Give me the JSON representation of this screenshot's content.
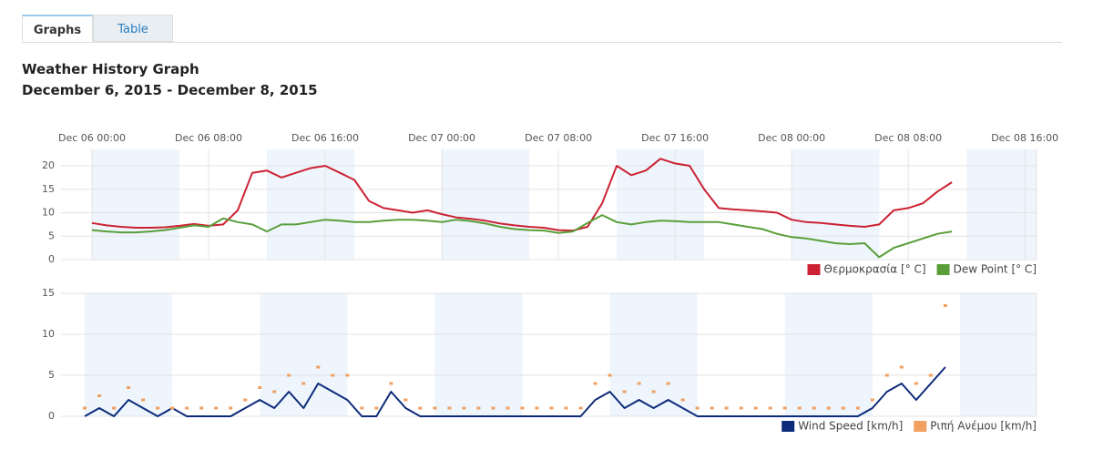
{
  "tabs": [
    "Graphs",
    "Table"
  ],
  "heading": {
    "title": "Weather History Graph",
    "subtitle": "December 6, 2015 - December 8, 2015"
  },
  "chart_data": [
    {
      "type": "line",
      "x": [
        "Dec 06 00:00",
        "Dec 06 01:00",
        "Dec 06 02:00",
        "Dec 06 03:00",
        "Dec 06 04:00",
        "Dec 06 05:00",
        "Dec 06 06:00",
        "Dec 06 07:00",
        "Dec 06 08:00",
        "Dec 06 09:00",
        "Dec 06 10:00",
        "Dec 06 11:00",
        "Dec 06 12:00",
        "Dec 06 13:00",
        "Dec 06 14:00",
        "Dec 06 15:00",
        "Dec 06 16:00",
        "Dec 06 17:00",
        "Dec 06 18:00",
        "Dec 06 19:00",
        "Dec 06 20:00",
        "Dec 06 21:00",
        "Dec 06 22:00",
        "Dec 06 23:00",
        "Dec 07 00:00",
        "Dec 07 01:00",
        "Dec 07 02:00",
        "Dec 07 03:00",
        "Dec 07 04:00",
        "Dec 07 05:00",
        "Dec 07 06:00",
        "Dec 07 07:00",
        "Dec 07 08:00",
        "Dec 07 09:00",
        "Dec 07 10:00",
        "Dec 07 11:00",
        "Dec 07 12:00",
        "Dec 07 13:00",
        "Dec 07 14:00",
        "Dec 07 15:00",
        "Dec 07 16:00",
        "Dec 07 17:00",
        "Dec 07 18:00",
        "Dec 07 19:00",
        "Dec 07 20:00",
        "Dec 07 21:00",
        "Dec 07 22:00",
        "Dec 07 23:00",
        "Dec 08 00:00",
        "Dec 08 01:00",
        "Dec 08 02:00",
        "Dec 08 03:00",
        "Dec 08 04:00",
        "Dec 08 05:00",
        "Dec 08 06:00",
        "Dec 08 07:00",
        "Dec 08 08:00",
        "Dec 08 09:00",
        "Dec 08 10:00",
        "Dec 08 11:00"
      ],
      "series": [
        {
          "name": "Θερμοκρασία [° C]",
          "color": "#cc2233",
          "values": [
            7.8,
            7.3,
            7,
            6.8,
            6.8,
            6.9,
            7.2,
            7.6,
            7.2,
            7.5,
            10.5,
            18.5,
            19,
            17.5,
            18.5,
            19.5,
            20,
            18.5,
            17,
            12.5,
            11,
            10.5,
            10,
            10.5,
            9.7,
            9,
            8.7,
            8.3,
            7.7,
            7.3,
            7,
            6.8,
            6.3,
            6.2,
            7,
            12,
            20,
            18,
            19,
            21.5,
            20.5,
            20,
            15,
            11,
            10.7,
            10.5,
            10.3,
            10,
            8.5,
            8,
            7.8,
            7.5,
            7.2,
            7,
            7.5,
            10.5,
            11,
            12,
            14.5,
            16.5
          ]
        },
        {
          "name": "Dew Point [° C]",
          "color": "#5a9e3a",
          "values": [
            6.3,
            6,
            5.8,
            5.8,
            6,
            6.3,
            6.8,
            7.3,
            7,
            8.8,
            8,
            7.5,
            6,
            7.5,
            7.5,
            8,
            8.5,
            8.3,
            8,
            8,
            8.3,
            8.5,
            8.5,
            8.3,
            8,
            8.5,
            8.2,
            7.7,
            7,
            6.5,
            6.3,
            6.2,
            5.7,
            6,
            7.8,
            9.5,
            8,
            7.5,
            8,
            8.3,
            8.2,
            8,
            8,
            8,
            7.5,
            7,
            6.5,
            5.5,
            4.8,
            4.5,
            4,
            3.5,
            3.3,
            3.5,
            0.5,
            2.5,
            3.5,
            4.5,
            5.5,
            6
          ]
        }
      ],
      "xlim": [
        "Dec 06 00:00",
        "Dec 08 16:48"
      ],
      "xticks": [
        "Dec 06 00:00",
        "Dec 06 08:00",
        "Dec 06 16:00",
        "Dec 07 00:00",
        "Dec 07 08:00",
        "Dec 07 16:00",
        "Dec 08 00:00",
        "Dec 08 08:00",
        "Dec 08 16:00"
      ],
      "bands": [
        [
          "Dec 06 00:00",
          "Dec 06 06:00"
        ],
        [
          "Dec 06 12:00",
          "Dec 06 18:00"
        ],
        [
          "Dec 07 00:00",
          "Dec 07 06:00"
        ],
        [
          "Dec 07 12:00",
          "Dec 07 18:00"
        ],
        [
          "Dec 08 00:00",
          "Dec 08 06:00"
        ],
        [
          "Dec 08 12:00",
          "Dec 08 16:48"
        ]
      ],
      "ylim": [
        0,
        23.5
      ],
      "yticks": [
        0,
        5,
        10,
        15,
        20
      ],
      "grid": true,
      "legend": "lower right"
    },
    {
      "type": "line",
      "x": [
        "Dec 06 00:00",
        "Dec 06 01:00",
        "Dec 06 02:00",
        "Dec 06 03:00",
        "Dec 06 04:00",
        "Dec 06 05:00",
        "Dec 06 06:00",
        "Dec 06 07:00",
        "Dec 06 08:00",
        "Dec 06 09:00",
        "Dec 06 10:00",
        "Dec 06 11:00",
        "Dec 06 12:00",
        "Dec 06 13:00",
        "Dec 06 14:00",
        "Dec 06 15:00",
        "Dec 06 16:00",
        "Dec 06 17:00",
        "Dec 06 18:00",
        "Dec 06 19:00",
        "Dec 06 20:00",
        "Dec 06 21:00",
        "Dec 06 22:00",
        "Dec 06 23:00",
        "Dec 07 00:00",
        "Dec 07 01:00",
        "Dec 07 02:00",
        "Dec 07 03:00",
        "Dec 07 04:00",
        "Dec 07 05:00",
        "Dec 07 06:00",
        "Dec 07 07:00",
        "Dec 07 08:00",
        "Dec 07 09:00",
        "Dec 07 10:00",
        "Dec 07 11:00",
        "Dec 07 12:00",
        "Dec 07 13:00",
        "Dec 07 14:00",
        "Dec 07 15:00",
        "Dec 07 16:00",
        "Dec 07 17:00",
        "Dec 07 18:00",
        "Dec 07 19:00",
        "Dec 07 20:00",
        "Dec 07 21:00",
        "Dec 07 22:00",
        "Dec 07 23:00",
        "Dec 08 00:00",
        "Dec 08 01:00",
        "Dec 08 02:00",
        "Dec 08 03:00",
        "Dec 08 04:00",
        "Dec 08 05:00",
        "Dec 08 06:00",
        "Dec 08 07:00",
        "Dec 08 08:00",
        "Dec 08 09:00",
        "Dec 08 10:00",
        "Dec 08 11:00"
      ],
      "series": [
        {
          "name": "Wind Speed [km/h]",
          "color": "#0d2b7a",
          "marker": "line",
          "values": [
            0,
            1,
            0,
            2,
            1,
            0,
            1,
            0,
            0,
            0,
            0,
            1,
            2,
            1,
            3,
            1,
            4,
            3,
            2,
            0,
            0,
            3,
            1,
            0,
            0,
            0,
            0,
            0,
            0,
            0,
            0,
            0,
            0,
            0,
            0,
            2,
            3,
            1,
            2,
            1,
            2,
            1,
            0,
            0,
            0,
            0,
            0,
            0,
            0,
            0,
            0,
            0,
            0,
            0,
            1,
            3,
            4,
            2,
            4,
            6
          ]
        },
        {
          "name": "Ριπή Ανέμου [km/h]",
          "color": "#f0a060",
          "marker": "dots",
          "values": [
            1,
            2.5,
            1,
            3.5,
            2,
            1,
            1,
            1,
            1,
            1,
            1,
            2,
            3.5,
            3,
            5,
            4,
            6,
            5,
            5,
            1,
            1,
            4,
            2,
            1,
            1,
            1,
            1,
            1,
            1,
            1,
            1,
            1,
            1,
            1,
            1,
            4,
            5,
            3,
            4,
            3,
            4,
            2,
            1,
            1,
            1,
            1,
            1,
            1,
            1,
            1,
            1,
            1,
            1,
            1,
            2,
            5,
            6,
            4,
            5,
            13.5
          ]
        }
      ],
      "xlim": [
        "Dec 05 22:15",
        "Dec 08 17:15"
      ],
      "bands": [
        [
          "Dec 06 00:00",
          "Dec 06 06:00"
        ],
        [
          "Dec 06 12:00",
          "Dec 06 18:00"
        ],
        [
          "Dec 07 00:00",
          "Dec 07 06:00"
        ],
        [
          "Dec 07 12:00",
          "Dec 07 18:00"
        ],
        [
          "Dec 08 00:00",
          "Dec 08 06:00"
        ],
        [
          "Dec 08 12:00",
          "Dec 08 17:15"
        ]
      ],
      "ylim": [
        0,
        15
      ],
      "yticks": [
        0,
        5,
        10,
        15
      ],
      "grid": true,
      "legend": "lower right"
    }
  ]
}
